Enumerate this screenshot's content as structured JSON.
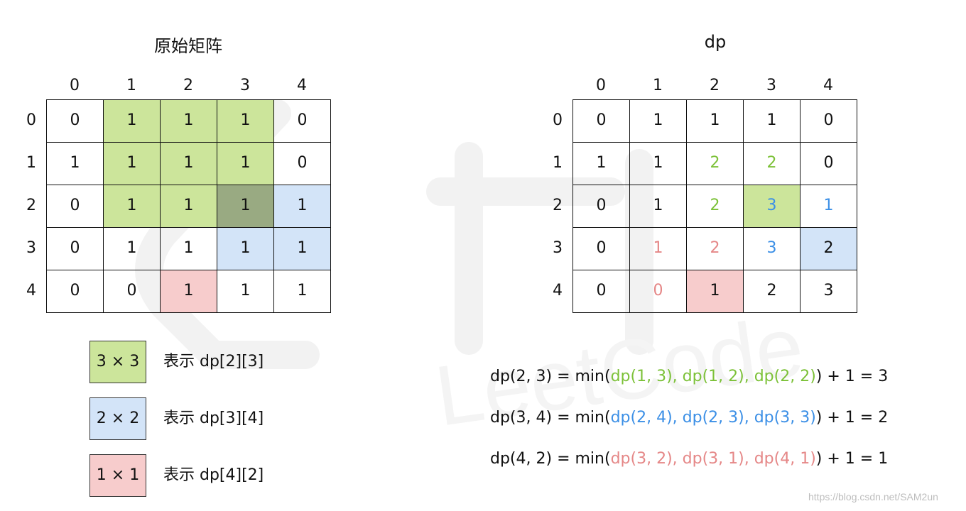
{
  "left": {
    "title": "原始矩阵",
    "col_headers": [
      "0",
      "1",
      "2",
      "3",
      "4"
    ],
    "row_headers": [
      "0",
      "1",
      "2",
      "3",
      "4"
    ],
    "cells": [
      [
        "0",
        "1",
        "1",
        "1",
        "0"
      ],
      [
        "1",
        "1",
        "1",
        "1",
        "0"
      ],
      [
        "0",
        "1",
        "1",
        "1",
        "1"
      ],
      [
        "0",
        "1",
        "1",
        "1",
        "1"
      ],
      [
        "0",
        "0",
        "1",
        "1",
        "1"
      ]
    ],
    "fills": [
      [
        "",
        "g",
        "g",
        "g",
        ""
      ],
      [
        "",
        "g",
        "g",
        "g",
        ""
      ],
      [
        "",
        "g",
        "g",
        "dg",
        "b"
      ],
      [
        "",
        "",
        "",
        "b",
        "b"
      ],
      [
        "",
        "",
        "p",
        "",
        ""
      ]
    ]
  },
  "right": {
    "title": "dp",
    "col_headers": [
      "0",
      "1",
      "2",
      "3",
      "4"
    ],
    "row_headers": [
      "0",
      "1",
      "2",
      "3",
      "4"
    ],
    "cells": [
      [
        "0",
        "1",
        "1",
        "1",
        "0"
      ],
      [
        "1",
        "1",
        "2",
        "2",
        "0"
      ],
      [
        "0",
        "1",
        "2",
        "3",
        "1"
      ],
      [
        "0",
        "1",
        "2",
        "3",
        "2"
      ],
      [
        "0",
        "0",
        "1",
        "2",
        "3"
      ]
    ],
    "fills": [
      [
        "",
        "",
        "",
        "",
        ""
      ],
      [
        "",
        "",
        "",
        "",
        ""
      ],
      [
        "",
        "",
        "",
        "g",
        ""
      ],
      [
        "",
        "",
        "",
        "",
        "b"
      ],
      [
        "",
        "",
        "p",
        "",
        ""
      ]
    ],
    "text_colors": [
      [
        "",
        "",
        "",
        "",
        ""
      ],
      [
        "",
        "",
        "green",
        "green",
        ""
      ],
      [
        "",
        "",
        "green",
        "blue",
        "blue"
      ],
      [
        "",
        "red",
        "red",
        "blue",
        ""
      ],
      [
        "",
        "red",
        "",
        "",
        ""
      ]
    ]
  },
  "legend": [
    {
      "box": "3 × 3",
      "text": "表示 dp[2][3]",
      "fill": "#cce59b"
    },
    {
      "box": "2 × 2",
      "text": "表示 dp[3][4]",
      "fill": "#d3e4f8"
    },
    {
      "box": "1 × 1",
      "text": "表示 dp[4][2]",
      "fill": "#f7cccc"
    }
  ],
  "formulas": [
    {
      "pre": "dp(2, 3) = min(",
      "mid": "dp(1, 3), dp(1, 2), dp(2, 2)",
      "post": ") + 1 = 3",
      "color": "#7cc138"
    },
    {
      "pre": "dp(3, 4) = min(",
      "mid": "dp(2, 4), dp(2, 3), dp(3, 3)",
      "post": ") + 1 = 2",
      "color": "#3b8fe6"
    },
    {
      "pre": "dp(4, 2) = min(",
      "mid": "dp(3, 2), dp(3, 1), dp(4, 1)",
      "post": ") + 1 = 1",
      "color": "#e58787"
    }
  ],
  "watermark": "https://blog.csdn.net/SAM2un",
  "colors": {
    "green": "#7cc138",
    "blue": "#3b8fe6",
    "red": "#e58787"
  }
}
